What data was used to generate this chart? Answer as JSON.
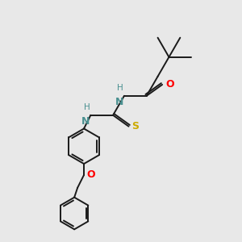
{
  "background_color": "#e8e8e8",
  "atom_colors": {
    "N": "#4a9090",
    "O": "#ff0000",
    "S": "#ccaa00",
    "H": "#4a9090"
  },
  "bond_color": "#1a1a1a",
  "figsize": [
    3.0,
    3.0
  ],
  "dpi": 100,
  "lw": 1.4
}
